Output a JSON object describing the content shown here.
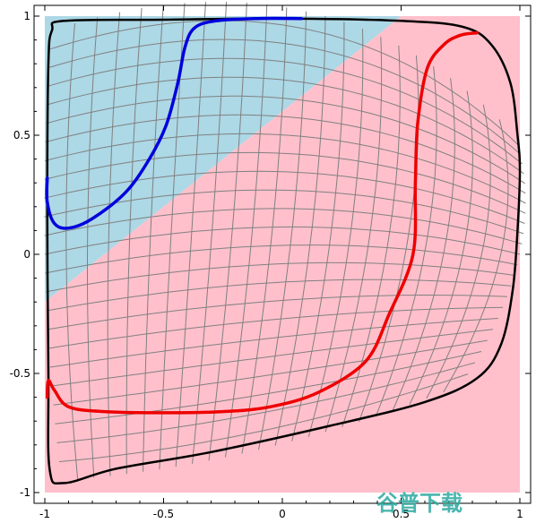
{
  "chart_data": {
    "type": "line",
    "title": "",
    "xlabel": "",
    "ylabel": "",
    "xlim": [
      -1,
      1
    ],
    "ylim": [
      -1,
      1
    ],
    "grid": false,
    "x_ticks": [
      "-1",
      "-0.5",
      "0",
      "0.5",
      "1"
    ],
    "y_ticks": [
      "1",
      "0.5",
      "0",
      "-0.5",
      "-1"
    ],
    "regions": [
      {
        "color": "#add8e6",
        "polygon": [
          [
            -1,
            1
          ],
          [
            0.5,
            1
          ],
          [
            -1,
            -0.2
          ]
        ]
      },
      {
        "color": "#ffc0cb",
        "polygon": [
          [
            0.5,
            1
          ],
          [
            1,
            1
          ],
          [
            1,
            -1
          ],
          [
            -1,
            -1
          ],
          [
            -1,
            -0.2
          ]
        ]
      }
    ],
    "mesh_curves": {
      "count": 24,
      "color": "#808080"
    },
    "series": [
      {
        "color": "#000000",
        "closed": true,
        "points": [
          [
            -0.92,
            0.98
          ],
          [
            -0.5,
            0.985
          ],
          [
            0,
            0.99
          ],
          [
            0.5,
            0.98
          ],
          [
            0.76,
            0.955
          ],
          [
            0.88,
            0.88
          ],
          [
            0.96,
            0.72
          ],
          [
            0.99,
            0.5
          ],
          [
            1.0,
            0.35
          ],
          [
            0.99,
            0.1
          ],
          [
            0.97,
            -0.15
          ],
          [
            0.92,
            -0.38
          ],
          [
            0.82,
            -0.52
          ],
          [
            0.6,
            -0.62
          ],
          [
            0.2,
            -0.72
          ],
          [
            -0.3,
            -0.83
          ],
          [
            -0.7,
            -0.9
          ],
          [
            -0.92,
            -0.96
          ],
          [
            -0.98,
            -0.9
          ],
          [
            -0.985,
            -0.5
          ],
          [
            -0.99,
            0.2
          ],
          [
            -0.985,
            0.8
          ],
          [
            -0.97,
            0.94
          ]
        ]
      },
      {
        "color": "#0000dd",
        "closed": false,
        "points": [
          [
            -0.99,
            0.32
          ],
          [
            -0.99,
            0.22
          ],
          [
            -0.96,
            0.13
          ],
          [
            -0.9,
            0.11
          ],
          [
            -0.8,
            0.15
          ],
          [
            -0.66,
            0.26
          ],
          [
            -0.56,
            0.4
          ],
          [
            -0.49,
            0.54
          ],
          [
            -0.44,
            0.72
          ],
          [
            -0.41,
            0.87
          ],
          [
            -0.37,
            0.95
          ],
          [
            -0.28,
            0.98
          ],
          [
            -0.1,
            0.99
          ],
          [
            0.08,
            0.99
          ]
        ]
      },
      {
        "color": "#ee0000",
        "closed": false,
        "points": [
          [
            -0.99,
            -0.6
          ],
          [
            -0.985,
            -0.53
          ],
          [
            -0.96,
            -0.57
          ],
          [
            -0.9,
            -0.64
          ],
          [
            -0.75,
            -0.66
          ],
          [
            -0.5,
            -0.665
          ],
          [
            -0.25,
            -0.66
          ],
          [
            -0.05,
            -0.64
          ],
          [
            0.15,
            -0.58
          ],
          [
            0.35,
            -0.45
          ],
          [
            0.45,
            -0.25
          ],
          [
            0.55,
            0.0
          ],
          [
            0.56,
            0.3
          ],
          [
            0.57,
            0.55
          ],
          [
            0.61,
            0.78
          ],
          [
            0.68,
            0.88
          ],
          [
            0.75,
            0.92
          ],
          [
            0.82,
            0.93
          ]
        ]
      }
    ]
  },
  "watermark": {
    "text": "谷普下载"
  }
}
